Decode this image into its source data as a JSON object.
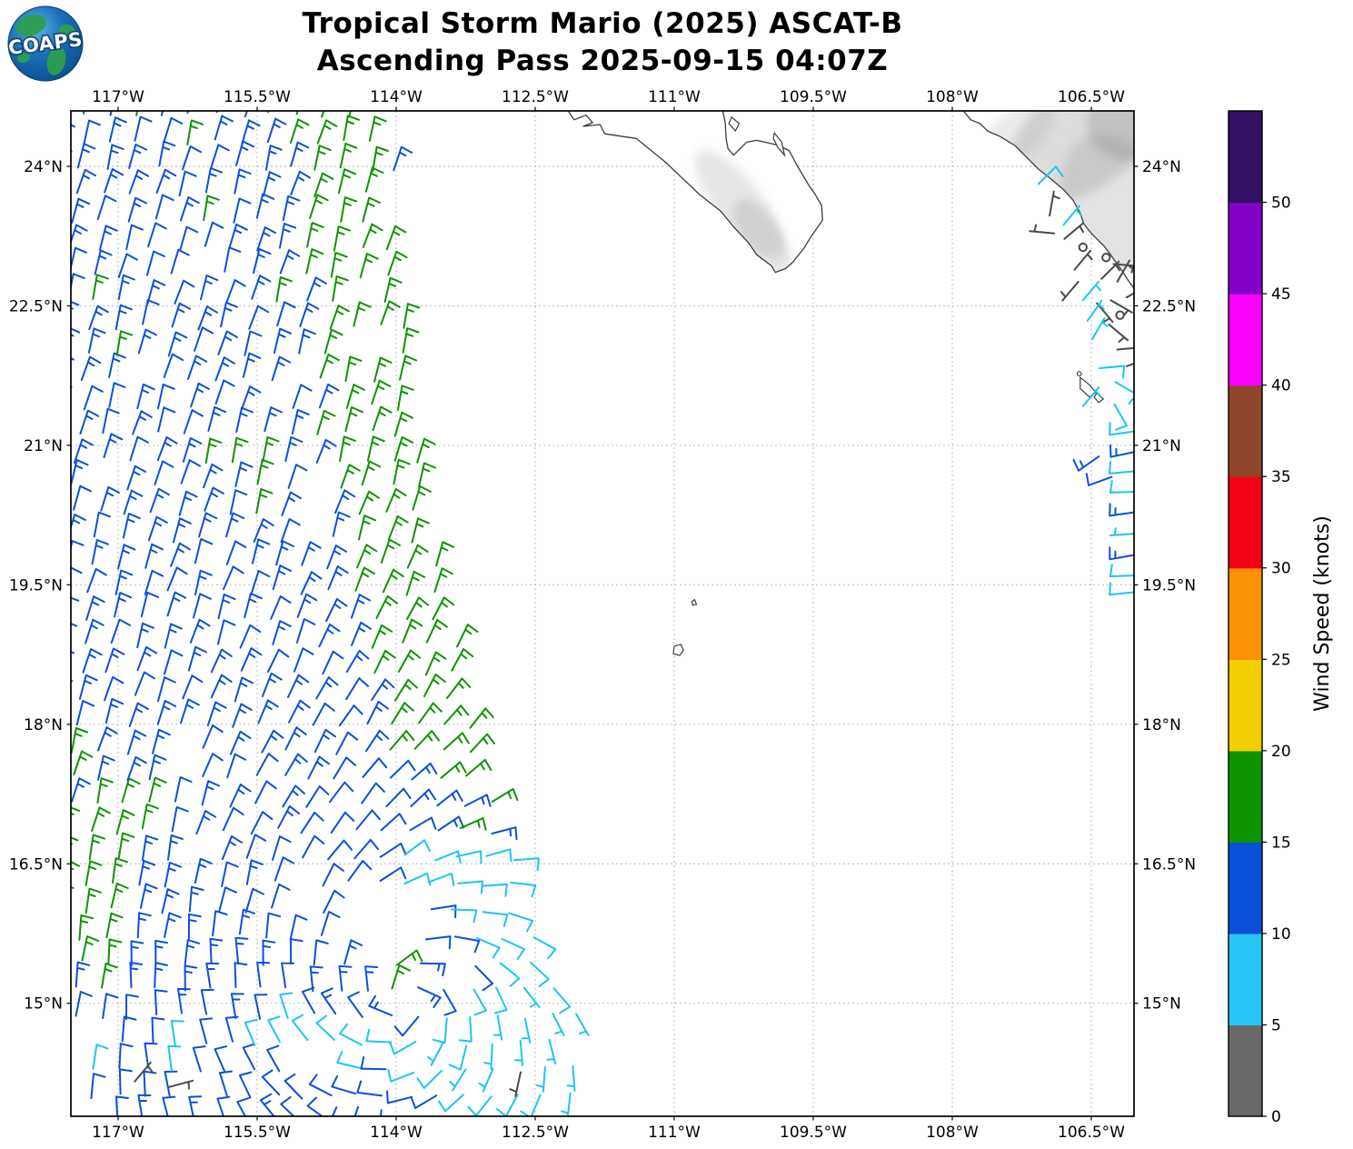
{
  "title": {
    "line1": "Tropical Storm Mario (2025) ASCAT-B",
    "line2": "Ascending Pass 2025-09-15 04:07Z"
  },
  "logo": {
    "text": "COAPS"
  },
  "axes": {
    "lon_ticks": [
      {
        "label": "117°W",
        "lon": -117
      },
      {
        "label": "115.5°W",
        "lon": -115.5
      },
      {
        "label": "114°W",
        "lon": -114
      },
      {
        "label": "112.5°W",
        "lon": -112.5
      },
      {
        "label": "111°W",
        "lon": -111
      },
      {
        "label": "109.5°W",
        "lon": -109.5
      },
      {
        "label": "108°W",
        "lon": -108
      },
      {
        "label": "106.5°W",
        "lon": -106.5
      }
    ],
    "lat_ticks": [
      {
        "label": "24°N",
        "lat": 24
      },
      {
        "label": "22.5°N",
        "lat": 22.5
      },
      {
        "label": "21°N",
        "lat": 21
      },
      {
        "label": "19.5°N",
        "lat": 19.5
      },
      {
        "label": "18°N",
        "lat": 18
      },
      {
        "label": "16.5°N",
        "lat": 16.5
      },
      {
        "label": "15°N",
        "lat": 15
      }
    ]
  },
  "colorbar": {
    "label": "Wind Speed (knots)",
    "tick_values": [
      0,
      5,
      10,
      15,
      20,
      25,
      30,
      35,
      40,
      45,
      50
    ],
    "tick_labels": [
      "0",
      "5",
      "10",
      "15",
      "20",
      "25",
      "30",
      "35",
      "40",
      "45",
      "50"
    ],
    "max_value": 55,
    "colors_bottom_to_top": [
      "#696969",
      "#29C5F5",
      "#0B50D8",
      "#0D9400",
      "#F2CE02",
      "#F99206",
      "#F20214",
      "#8E4529",
      "#FB00FB",
      "#8203C6",
      "#321063"
    ]
  },
  "chart_data": {
    "type": "wind_barb_map",
    "units": "knots",
    "extent": {
      "lon_min": -117.51,
      "lon_max": -106.04,
      "lat_min": 13.79,
      "lat_max": 24.6
    },
    "grid_spacing_deg": 0.285,
    "row_drift_deg_per_deg_lat": 0.1,
    "background_wind_from_deg": 15,
    "background_speed_kt": 12.8,
    "storm_center": {
      "lon": -113.9,
      "lat": 15.05
    },
    "swath": {
      "left_lon": -117.65,
      "left_cut_below_lat": 14.9,
      "left_cut_slope": 0.5,
      "right_boundary_base": -114.2,
      "right_slope_upper": 0.143,
      "right_slope_lower": 0.168,
      "right_knee_lat": 19
    },
    "speed_features": {
      "green_east_edge": {
        "offset_from_right": 0.5,
        "sigma": 0.6,
        "amp": 5.2,
        "min_lat": 16.8
      },
      "green_left_patch": {
        "lon": -117.35,
        "lat": 16.3,
        "sig_lon": 0.75,
        "sig_lat": 1.15,
        "amp": 5.0
      },
      "green_center_cluster": {
        "lon": -114.05,
        "lat": 15.35,
        "sigma": 0.3,
        "amp": 5.5
      },
      "cyan_storm_arc": {
        "radius": 1.55,
        "sigma": 1.0,
        "bearing_center": 80,
        "bearing_sigma": 95,
        "amp": -5.3
      },
      "cyan_bottom_band": {
        "lat": 14.45,
        "sigma": 0.4,
        "amp": -4.9
      }
    },
    "speed_bins": [
      {
        "max": 5,
        "color": "#4a4a4a",
        "name": "0-5 kt"
      },
      {
        "max": 10,
        "color": "#1EC4F2",
        "name": "5-10 kt"
      },
      {
        "max": 15,
        "color": "#0B50D8",
        "name": "10-15 kt"
      },
      {
        "max": 20,
        "color": "#0D9400",
        "name": "15-20 kt"
      }
    ],
    "voids": [
      [
        -114.15,
        15.85,
        0.42
      ]
    ],
    "coastal_barbs": [
      [
        -107.07,
        23.81,
        8,
        45
      ],
      [
        -106.95,
        23.47,
        4,
        10
      ],
      [
        -106.8,
        23.37,
        7,
        40
      ],
      [
        -106.9,
        23.28,
        3,
        275
      ],
      [
        -106.79,
        23.22,
        4,
        50
      ],
      [
        -106.59,
        23.13,
        0,
        0
      ],
      [
        -106.34,
        23.02,
        0,
        0
      ],
      [
        -106.26,
        22.95,
        4,
        95
      ],
      [
        -106.68,
        22.89,
        4,
        40
      ],
      [
        -106.64,
        22.76,
        4,
        220
      ],
      [
        -106.39,
        22.79,
        4,
        45
      ],
      [
        -106.22,
        22.76,
        4,
        30
      ],
      [
        -106.12,
        22.59,
        4,
        60
      ],
      [
        -106.59,
        22.56,
        7,
        40
      ],
      [
        -106.44,
        22.53,
        4,
        140
      ],
      [
        -106.29,
        22.56,
        4,
        120
      ],
      [
        -106.19,
        22.4,
        0,
        0
      ],
      [
        -106.54,
        22.34,
        7,
        35
      ],
      [
        -106.31,
        22.3,
        4,
        130
      ],
      [
        -106.49,
        22.14,
        7,
        30
      ],
      [
        -106.22,
        22.03,
        4,
        85
      ],
      [
        -106.12,
        21.85,
        4,
        70
      ],
      [
        -106.41,
        21.83,
        8,
        85
      ],
      [
        -106.24,
        21.68,
        8,
        120
      ],
      [
        -106.59,
        21.42,
        7,
        40
      ],
      [
        -106.25,
        21.44,
        8,
        150
      ]
    ],
    "right_edge_barbs": [
      [
        -106.42,
        20.88,
        13,
        235
      ],
      [
        -106.28,
        20.66,
        12,
        250
      ],
      [
        -106.04,
        21.15,
        8,
        262
      ],
      [
        -106.03,
        20.93,
        13,
        258
      ],
      [
        -106.04,
        20.72,
        8,
        265
      ],
      [
        -106.03,
        20.5,
        8,
        268
      ],
      [
        -106.04,
        20.28,
        13,
        262
      ],
      [
        -106.03,
        20.05,
        7,
        266
      ],
      [
        -106.04,
        19.82,
        13,
        260
      ],
      [
        -106.03,
        19.6,
        8,
        268
      ],
      [
        -106.04,
        19.42,
        8,
        264
      ]
    ],
    "isolated_gray_barbs": [
      [
        -116.82,
        14.16,
        4,
        40
      ],
      [
        -116.45,
        14.1,
        4,
        75
      ]
    ]
  },
  "land": {
    "baja_california": [
      [
        -112.16,
        24.62
      ],
      [
        -112.08,
        24.5
      ],
      [
        -111.95,
        24.55
      ],
      [
        -111.88,
        24.47
      ],
      [
        -111.98,
        24.43
      ],
      [
        -111.8,
        24.45
      ],
      [
        -111.75,
        24.35
      ],
      [
        -111.41,
        24.3
      ],
      [
        -111.1,
        24.05
      ],
      [
        -110.73,
        23.7
      ],
      [
        -110.5,
        23.52
      ],
      [
        -110.36,
        23.35
      ],
      [
        -110.2,
        23.18
      ],
      [
        -110.11,
        23.05
      ],
      [
        -109.95,
        22.93
      ],
      [
        -109.91,
        22.86
      ],
      [
        -109.8,
        22.9
      ],
      [
        -109.72,
        22.97
      ],
      [
        -109.6,
        23.12
      ],
      [
        -109.52,
        23.25
      ],
      [
        -109.4,
        23.42
      ],
      [
        -109.41,
        23.58
      ],
      [
        -109.48,
        23.7
      ],
      [
        -109.55,
        23.8
      ],
      [
        -109.68,
        24.02
      ],
      [
        -109.76,
        24.17
      ],
      [
        -109.89,
        24.23
      ],
      [
        -110.02,
        24.26
      ],
      [
        -110.11,
        24.28
      ],
      [
        -110.22,
        24.26
      ],
      [
        -110.3,
        24.18
      ],
      [
        -110.36,
        24.12
      ],
      [
        -110.42,
        24.19
      ],
      [
        -110.44,
        24.3
      ],
      [
        -110.45,
        24.47
      ],
      [
        -110.48,
        24.62
      ]
    ],
    "mainland_mexico": [
      [
        -107.9,
        24.62
      ],
      [
        -107.8,
        24.5
      ],
      [
        -107.7,
        24.46
      ],
      [
        -107.62,
        24.38
      ],
      [
        -107.48,
        24.32
      ],
      [
        -107.32,
        24.22
      ],
      [
        -107.2,
        24.1
      ],
      [
        -107.07,
        23.97
      ],
      [
        -106.93,
        23.86
      ],
      [
        -106.8,
        23.75
      ],
      [
        -106.7,
        23.64
      ],
      [
        -106.62,
        23.5
      ],
      [
        -106.58,
        23.38
      ],
      [
        -106.5,
        23.28
      ],
      [
        -106.44,
        23.22
      ],
      [
        -106.36,
        23.14
      ],
      [
        -106.3,
        23.06
      ],
      [
        -106.25,
        22.99
      ],
      [
        -106.17,
        22.88
      ],
      [
        -106.1,
        22.77
      ],
      [
        -106.02,
        22.66
      ],
      [
        -105.8,
        22.6
      ],
      [
        -105.8,
        24.62
      ]
    ],
    "islands": [
      [
        [
          -110.38,
          24.53
        ],
        [
          -110.3,
          24.46
        ],
        [
          -110.34,
          24.38
        ],
        [
          -110.41,
          24.46
        ]
      ],
      [
        [
          -109.92,
          24.36
        ],
        [
          -109.84,
          24.26
        ],
        [
          -109.81,
          24.12
        ],
        [
          -109.88,
          24.2
        ],
        [
          -109.93,
          24.3
        ]
      ],
      [
        [
          -110.78,
          19.34
        ],
        [
          -110.76,
          19.29
        ],
        [
          -110.8,
          19.28
        ],
        [
          -110.81,
          19.32
        ]
      ],
      [
        [
          -111.0,
          18.84
        ],
        [
          -110.93,
          18.86
        ],
        [
          -110.9,
          18.8
        ],
        [
          -110.94,
          18.74
        ],
        [
          -111.01,
          18.76
        ]
      ],
      [
        [
          -106.62,
          21.73
        ],
        [
          -106.52,
          21.65
        ],
        [
          -106.45,
          21.57
        ],
        [
          -106.52,
          21.52
        ],
        [
          -106.62,
          21.61
        ]
      ],
      [
        [
          -106.44,
          21.56
        ],
        [
          -106.37,
          21.5
        ],
        [
          -106.42,
          21.46
        ],
        [
          -106.47,
          21.52
        ]
      ]
    ],
    "dot_islands": [
      [
        -106.63,
        21.77
      ]
    ],
    "terrain_blobs": [
      {
        "lon": -106.6,
        "lat": 24.3,
        "rx": 0.9,
        "ry": 0.55,
        "rot": -35,
        "op": 0.3
      },
      {
        "lon": -106.2,
        "lat": 23.6,
        "rx": 0.55,
        "ry": 0.8,
        "rot": -30,
        "op": 0.25
      },
      {
        "lon": -106.05,
        "lat": 24.45,
        "rx": 0.5,
        "ry": 0.4,
        "rot": 0,
        "op": 0.35
      },
      {
        "lon": -107.3,
        "lat": 24.35,
        "rx": 0.45,
        "ry": 0.25,
        "rot": -40,
        "op": 0.18
      },
      {
        "lon": -110.3,
        "lat": 23.6,
        "rx": 0.25,
        "ry": 0.7,
        "rot": -38,
        "op": 0.22
      },
      {
        "lon": -110.05,
        "lat": 23.25,
        "rx": 0.2,
        "ry": 0.45,
        "rot": -35,
        "op": 0.25
      }
    ]
  }
}
